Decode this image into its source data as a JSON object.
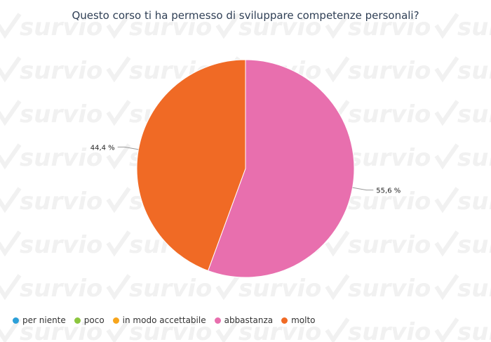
{
  "watermark": {
    "text": "survio"
  },
  "chart_data": {
    "type": "pie",
    "title": "Questo corso ti ha permesso di sviluppare competenze personali?",
    "legend_position": "bottom-left",
    "categories": [
      "per niente",
      "poco",
      "in modo accettabile",
      "abbastanza",
      "molto"
    ],
    "values": [
      0,
      0,
      0,
      55.6,
      44.4
    ],
    "value_labels": [
      "",
      "",
      "",
      "55,6 %",
      "44,4 %"
    ],
    "colors": [
      "#2b9fd8",
      "#8cc63f",
      "#f7a51c",
      "#e86fae",
      "#f06a25"
    ]
  }
}
